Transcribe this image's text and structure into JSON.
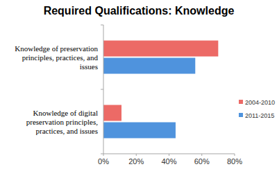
{
  "chart_data": {
    "type": "bar",
    "title": "Required Qualifications: Knowledge",
    "orientation": "horizontal",
    "categories": [
      "Knowledge of preservation principles, practices, and issues",
      "Knowledge of digital preservation principles, practices, and issues"
    ],
    "series": [
      {
        "name": "2004-2010",
        "color": "#ec6a66",
        "values": [
          70,
          11
        ]
      },
      {
        "name": "2011-2015",
        "color": "#4f93dd",
        "values": [
          56,
          44
        ]
      }
    ],
    "xlim": [
      0,
      80
    ],
    "xticks": [
      {
        "value": 0,
        "label": "0%"
      },
      {
        "value": 20,
        "label": "20%"
      },
      {
        "value": 40,
        "label": "40%"
      },
      {
        "value": 60,
        "label": "60%"
      },
      {
        "value": 80,
        "label": "80%"
      }
    ],
    "grid": false,
    "legend": "right"
  }
}
